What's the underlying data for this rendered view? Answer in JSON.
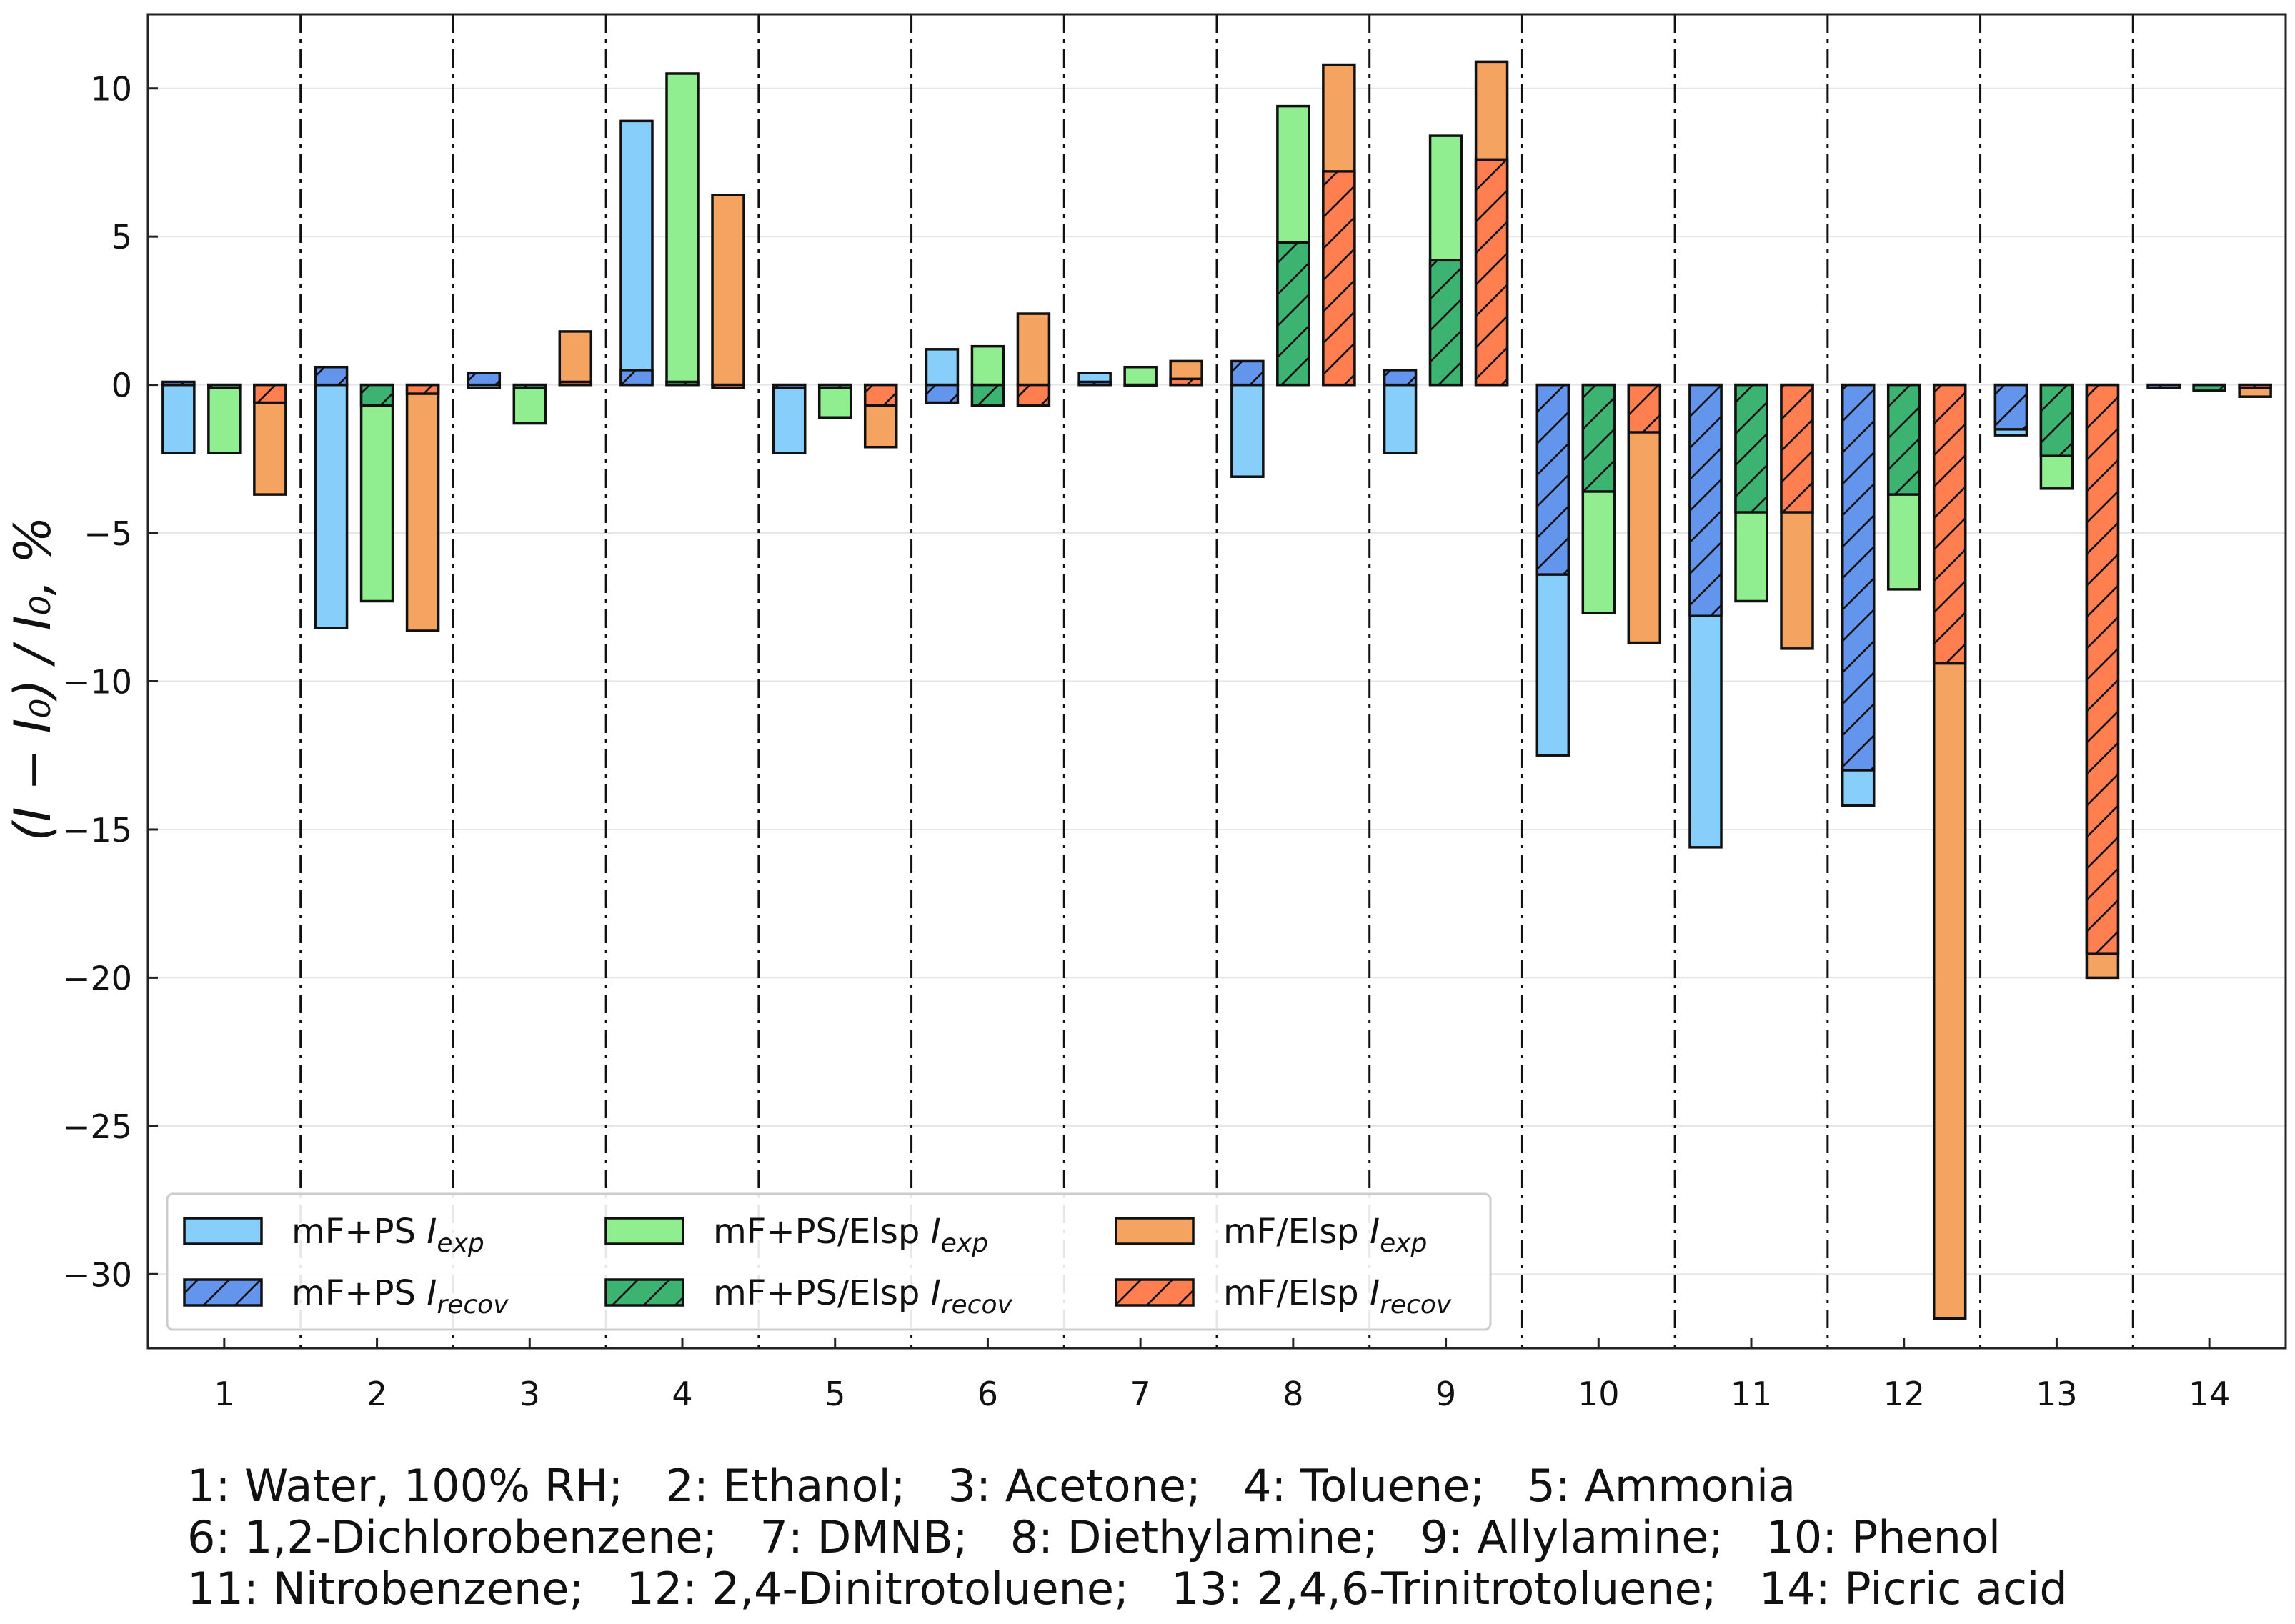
{
  "chart_data": {
    "type": "bar",
    "ylabel": "(I − I₀) / I₀, %",
    "ylim": [
      -32.5,
      12.5
    ],
    "yticks": [
      10,
      5,
      0,
      -5,
      -10,
      -15,
      -20,
      -25,
      -30
    ],
    "ytick_labels": [
      "10",
      "5",
      "0",
      "−5",
      "−10",
      "−15",
      "−20",
      "−25",
      "−30"
    ],
    "categories": [
      "1",
      "2",
      "3",
      "4",
      "5",
      "6",
      "7",
      "8",
      "9",
      "10",
      "11",
      "12",
      "13",
      "14"
    ],
    "colors": {
      "ps_exp": "#87cefa",
      "ps_recov": "#6495ed",
      "elsp_exp": "#90ee90",
      "elsp_recov": "#3cb371",
      "mf_exp": "#f4a460",
      "mf_recov": "#ff7f50"
    },
    "series": [
      {
        "key": "ps_exp",
        "name": "mF+PS",
        "sub": "exp",
        "values": [
          -2.3,
          -8.2,
          -0.1,
          8.9,
          -2.3,
          1.2,
          0.4,
          -3.1,
          -2.3,
          -12.5,
          -15.6,
          -14.2,
          -1.7,
          -0.1
        ]
      },
      {
        "key": "ps_recov",
        "name": "mF+PS",
        "sub": "recov",
        "values": [
          0.1,
          0.6,
          0.4,
          0.5,
          -0.1,
          -0.6,
          0.1,
          0.8,
          0.5,
          -6.4,
          -7.8,
          -13.0,
          -1.5,
          -0.1
        ]
      },
      {
        "key": "elsp_exp",
        "name": "mF+PS/Elsp",
        "sub": "exp",
        "values": [
          -2.3,
          -7.3,
          -1.3,
          10.5,
          -1.1,
          1.3,
          0.6,
          9.4,
          8.4,
          -7.7,
          -7.3,
          -6.9,
          -3.5,
          -0.2
        ]
      },
      {
        "key": "elsp_recov",
        "name": "mF+PS/Elsp",
        "sub": "recov",
        "values": [
          -0.1,
          -0.7,
          -0.1,
          0.1,
          -0.1,
          -0.7,
          0.0,
          4.8,
          4.2,
          -3.6,
          -4.3,
          -3.7,
          -2.4,
          -0.2
        ]
      },
      {
        "key": "mf_exp",
        "name": "mF/Elsp",
        "sub": "exp",
        "values": [
          -3.7,
          -8.3,
          1.8,
          6.4,
          -2.1,
          2.4,
          0.8,
          10.8,
          10.9,
          -8.7,
          -8.9,
          -31.5,
          -20.0,
          -0.4
        ]
      },
      {
        "key": "mf_recov",
        "name": "mF/Elsp",
        "sub": "recov",
        "values": [
          -0.6,
          -0.3,
          0.1,
          -0.1,
          -0.7,
          -0.7,
          0.2,
          7.2,
          7.6,
          -1.6,
          -4.3,
          -9.4,
          -19.2,
          -0.1
        ]
      }
    ],
    "legend_position": "lower-left",
    "legend_rows": [
      [
        "ps_exp",
        "elsp_exp",
        "mf_exp"
      ],
      [
        "ps_recov",
        "elsp_recov",
        "mf_recov"
      ]
    ],
    "analyte_legend": [
      "1: Water, 100% RH;   2: Ethanol;   3: Acetone;   4: Toluene;   5: Ammonia",
      "6: 1,2-Dichlorobenzene;   7: DMNB;   8: Diethylamine;   9: Allylamine;   10: Phenol",
      "11: Nitrobenzene;   12: 2,4-Dinitrotoluene;   13: 2,4,6-Trinitrotoluene;   14: Picric acid"
    ]
  }
}
